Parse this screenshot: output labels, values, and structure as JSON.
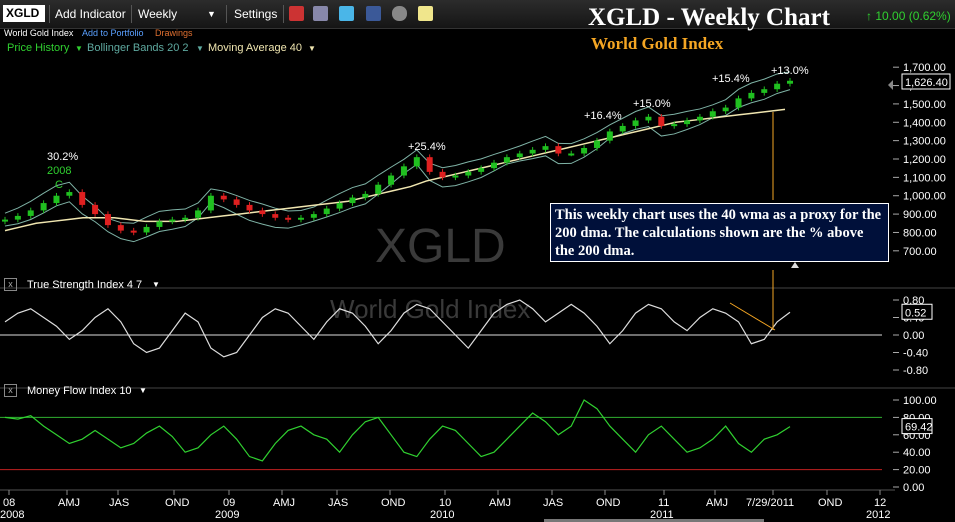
{
  "toolbar": {
    "symbol": "XGLD",
    "add_indicator": "Add Indicator",
    "period": "Weekly",
    "settings": "Settings"
  },
  "subbar": {
    "name": "World Gold Index",
    "add_portfolio": "Add to Portfolio",
    "drawings": "Drawings"
  },
  "legend": {
    "price_history": "Price History",
    "bollinger": "Bollinger Bands 20 2",
    "moving_avg": "Moving Average 40"
  },
  "header": {
    "title": "XGLD - Weekly Chart",
    "subtitle": "World Gold Index",
    "price_change": "10.00 (0.62%)"
  },
  "watermark": {
    "symbol": "XGLD",
    "name": "World Gold Index"
  },
  "note": "This weekly chart uses the 40 wma as a proxy for the 200 dma.  The calculations shown are the % above the 200 dma.",
  "indicators": {
    "tsi_label": "True Strength Index 4 7",
    "mfi_label": "Money Flow Index 10"
  },
  "colors": {
    "up": "#20c020",
    "down": "#e02020",
    "ma": "#f0e6b0",
    "bands": "#7fb3a6",
    "accent": "#f5a623"
  },
  "chart_data": [
    {
      "type": "candlestick",
      "series_names": [
        "Price History",
        "Bollinger Bands 20 2",
        "Moving Average 40"
      ],
      "ylim": [
        650,
        1750
      ],
      "yticks": [
        "1,700.00",
        "1,600.00",
        "1,500.00",
        "1,400.00",
        "1,300.00",
        "1,200.00",
        "1,100.00",
        "1,000.00",
        "900.00",
        "800.00",
        "700.00"
      ],
      "current_value": "1,626.40",
      "close": [
        870,
        890,
        920,
        960,
        1000,
        1020,
        950,
        900,
        840,
        810,
        800,
        830,
        860,
        870,
        880,
        920,
        1000,
        980,
        950,
        920,
        900,
        880,
        870,
        880,
        900,
        930,
        960,
        990,
        1010,
        1060,
        1110,
        1160,
        1210,
        1130,
        1100,
        1110,
        1130,
        1150,
        1180,
        1210,
        1230,
        1250,
        1270,
        1230,
        1230,
        1260,
        1300,
        1350,
        1380,
        1410,
        1430,
        1380,
        1390,
        1410,
        1430,
        1460,
        1480,
        1530,
        1560,
        1580,
        1610,
        1626
      ],
      "ma": [
        810,
        830,
        850,
        860,
        870,
        880,
        880,
        880,
        870,
        860,
        860,
        860,
        870,
        880,
        890,
        900,
        910,
        920,
        930,
        940,
        950,
        960,
        970,
        990,
        1010,
        1030,
        1050,
        1080,
        1100,
        1120,
        1140,
        1160,
        1180,
        1200,
        1220,
        1240,
        1260,
        1280,
        1300,
        1320,
        1340,
        1360,
        1380,
        1400,
        1410,
        1420,
        1430,
        1440,
        1450,
        1460,
        1470
      ],
      "annotations": [
        "30.2%",
        "2008",
        "C",
        "+25.4%",
        "+16.4%",
        "+15.0%",
        "+15.4%",
        "+13.0%"
      ]
    },
    {
      "type": "line",
      "name": "True Strength Index 4 7",
      "ylim": [
        -0.8,
        0.8
      ],
      "yticks": [
        "0.80",
        "0.40",
        "0.00",
        "-0.40",
        "-0.80"
      ],
      "current_value": "0.52",
      "values": [
        0.3,
        0.5,
        0.6,
        0.4,
        0.2,
        -0.1,
        0.1,
        0.4,
        0.6,
        0.3,
        -0.2,
        -0.4,
        -0.3,
        0.1,
        0.5,
        0.3,
        -0.3,
        -0.5,
        -0.4,
        0.0,
        0.4,
        0.6,
        0.5,
        0.2,
        -0.1,
        0.3,
        0.6,
        0.5,
        0.2,
        -0.2,
        0.1,
        0.5,
        0.7,
        0.6,
        0.3,
        0.0,
        -0.3,
        0.1,
        0.5,
        0.7,
        0.8,
        0.6,
        0.3,
        0.5,
        0.7,
        0.5,
        0.2,
        -0.2,
        0.1,
        0.5,
        0.7,
        0.6,
        0.3,
        0.1,
        0.4,
        0.6,
        0.5,
        0.3,
        -0.2,
        -0.1,
        0.3,
        0.52
      ]
    },
    {
      "type": "line",
      "name": "Money Flow Index 10",
      "ylim": [
        0,
        100
      ],
      "yticks": [
        "100.00",
        "80.00",
        "60.00",
        "40.00",
        "20.00",
        "0.00"
      ],
      "current_value": "69.42",
      "values": [
        80,
        78,
        82,
        70,
        60,
        50,
        55,
        65,
        55,
        45,
        50,
        62,
        70,
        58,
        40,
        45,
        60,
        70,
        55,
        35,
        30,
        50,
        65,
        70,
        60,
        55,
        40,
        60,
        75,
        80,
        60,
        40,
        35,
        55,
        70,
        65,
        50,
        35,
        40,
        55,
        70,
        85,
        75,
        60,
        70,
        100,
        90,
        70,
        55,
        40,
        60,
        70,
        55,
        40,
        45,
        55,
        70,
        50,
        40,
        55,
        60,
        69.42
      ]
    }
  ],
  "xaxis": {
    "labels": [
      "08",
      "AMJ",
      "JAS",
      "OND",
      "09",
      "AMJ",
      "JAS",
      "OND",
      "10",
      "AMJ",
      "JAS",
      "OND",
      "11",
      "AMJ",
      "7/29/2011",
      "OND",
      "12"
    ],
    "years": [
      "2008",
      "2009",
      "2010",
      "2011",
      "2012"
    ]
  }
}
